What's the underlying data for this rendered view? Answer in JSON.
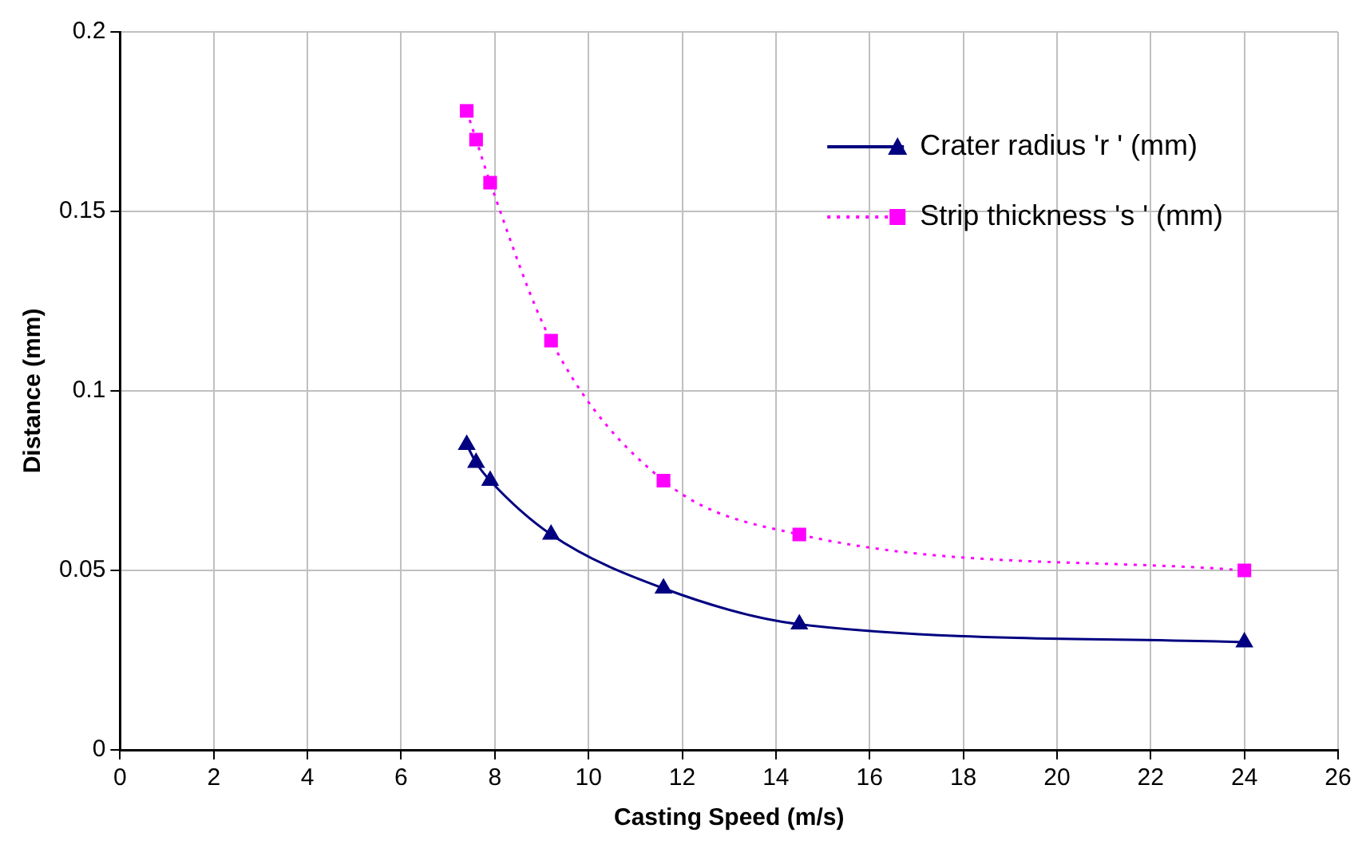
{
  "chart_data": {
    "type": "line",
    "xlabel": "Casting Speed (m/s)",
    "ylabel": "Distance (mm)",
    "x": [
      7.4,
      7.6,
      7.9,
      9.2,
      11.6,
      14.5,
      24
    ],
    "series": [
      {
        "name": "Crater radius 'r ' (mm)",
        "color": "#000080",
        "marker": "triangle",
        "line_style": "solid",
        "values": [
          0.085,
          0.08,
          0.075,
          0.06,
          0.045,
          0.035,
          0.03
        ]
      },
      {
        "name": "Strip thickness 's ' (mm)",
        "color": "#ff00ff",
        "marker": "square",
        "line_style": "dotted",
        "values": [
          0.178,
          0.17,
          0.158,
          0.114,
          0.075,
          0.06,
          0.05
        ]
      }
    ],
    "xlim": [
      0,
      26
    ],
    "xticks": [
      0,
      2,
      4,
      6,
      8,
      10,
      12,
      14,
      16,
      18,
      20,
      22,
      24,
      26
    ],
    "ylim": [
      0,
      0.2
    ],
    "yticks": [
      0,
      0.05,
      0.1,
      0.15,
      0.2
    ],
    "grid": true,
    "legend": "top right"
  }
}
